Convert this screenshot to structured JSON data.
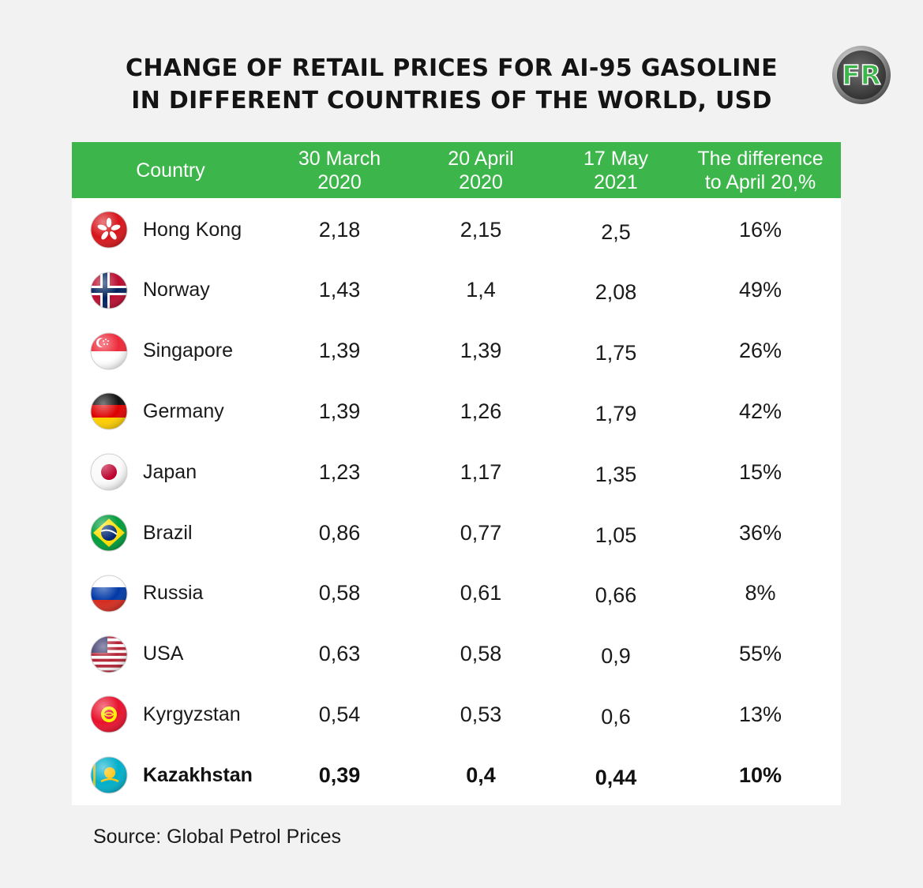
{
  "title_line1": "CHANGE OF RETAIL PRICES FOR AI-95 GASOLINE",
  "title_line2": "IN DIFFERENT COUNTRIES OF THE WORLD, USD",
  "logo_text": "FR",
  "source": "Source: Global Petrol Prices",
  "colors": {
    "header_green": "#3cb54a",
    "background": "#f2f2f2"
  },
  "chart_data": {
    "type": "table",
    "columns": [
      "Country",
      "30 March\n2020",
      "20 April\n2020",
      "17 May\n2021",
      "The difference\nto April 20,%"
    ],
    "rows": [
      {
        "country": "Hong Kong",
        "flag": "hong-kong-flag",
        "mar2020": "2,18",
        "apr2020": "2,15",
        "may2021": "2,5",
        "diff": "16%"
      },
      {
        "country": "Norway",
        "flag": "norway-flag",
        "mar2020": "1,43",
        "apr2020": "1,4",
        "may2021": "2,08",
        "diff": "49%"
      },
      {
        "country": "Singapore",
        "flag": "singapore-flag",
        "mar2020": "1,39",
        "apr2020": "1,39",
        "may2021": "1,75",
        "diff": "26%"
      },
      {
        "country": "Germany",
        "flag": "germany-flag",
        "mar2020": "1,39",
        "apr2020": "1,26",
        "may2021": "1,79",
        "diff": "42%"
      },
      {
        "country": "Japan",
        "flag": "japan-flag",
        "mar2020": "1,23",
        "apr2020": "1,17",
        "may2021": "1,35",
        "diff": "15%"
      },
      {
        "country": "Brazil",
        "flag": "brazil-flag",
        "mar2020": "0,86",
        "apr2020": "0,77",
        "may2021": "1,05",
        "diff": "36%"
      },
      {
        "country": "Russia",
        "flag": "russia-flag",
        "mar2020": "0,58",
        "apr2020": "0,61",
        "may2021": "0,66",
        "diff": "8%"
      },
      {
        "country": "USA",
        "flag": "usa-flag",
        "mar2020": "0,63",
        "apr2020": "0,58",
        "may2021": "0,9",
        "diff": "55%"
      },
      {
        "country": "Kyrgyzstan",
        "flag": "kyrgyzstan-flag",
        "mar2020": "0,54",
        "apr2020": "0,53",
        "may2021": "0,6",
        "diff": "13%"
      },
      {
        "country": "Kazakhstan",
        "flag": "kazakhstan-flag",
        "mar2020": "0,39",
        "apr2020": "0,4",
        "may2021": "0,44",
        "diff": "10%",
        "highlight": true
      }
    ]
  }
}
